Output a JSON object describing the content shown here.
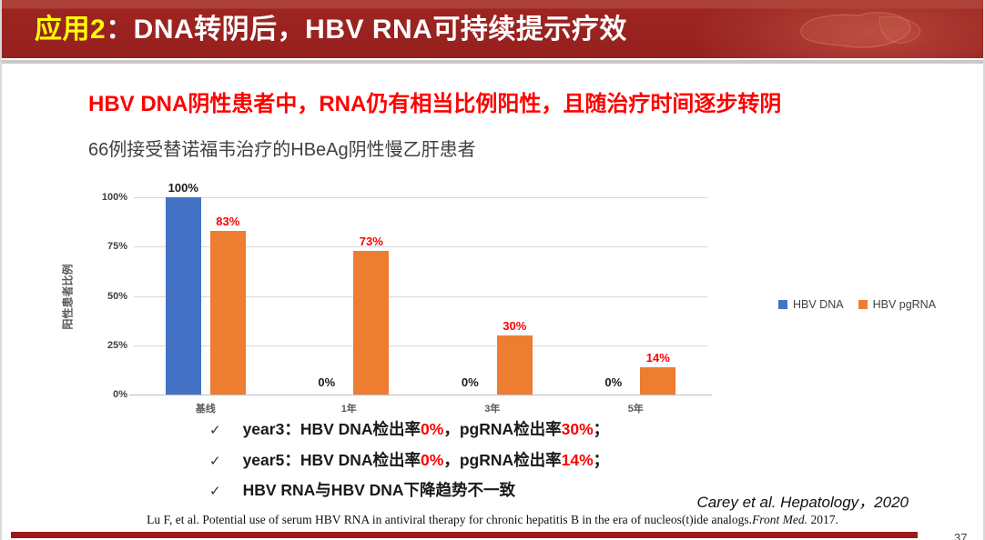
{
  "header": {
    "title_highlight": "应用2",
    "title_rest": "：DNA转阴后，HBV RNA可持续提示疗效"
  },
  "headline": "HBV DNA阴性患者中，RNA仍有相当比例阳性，且随治疗时间逐步转阴",
  "subtitle": "66例接受替诺福韦治疗的HBeAg阴性慢乙肝患者",
  "chart_data": {
    "type": "bar",
    "title": "",
    "categories": [
      "基线",
      "1年",
      "3年",
      "5年"
    ],
    "series": [
      {
        "name": "HBV DNA",
        "color": "#4472C4",
        "label_color": "#1a1a1a",
        "values": [
          100,
          0,
          0,
          0
        ]
      },
      {
        "name": "HBV pgRNA",
        "color": "#ED7D31",
        "label_color": "#FF0000",
        "values": [
          83,
          73,
          30,
          14
        ]
      }
    ],
    "xlabel": "",
    "ylabel": "阳性患者比例",
    "ylim": [
      0,
      100
    ],
    "yticks": [
      0,
      25,
      50,
      75,
      100
    ],
    "ytick_labels": [
      "0%",
      "25%",
      "50%",
      "75%",
      "100%"
    ],
    "value_labels": {
      "HBV DNA": [
        "100%",
        "0%",
        "0%",
        "0%"
      ],
      "HBV pgRNA": [
        "83%",
        "73%",
        "30%",
        "14%"
      ]
    },
    "grid": true,
    "legend_position": "right"
  },
  "bullets": [
    {
      "check": "✓",
      "parts": [
        {
          "t": "year3：HBV DNA检出率",
          "c": "black"
        },
        {
          "t": "0%",
          "c": "red"
        },
        {
          "t": "，pgRNA检出率",
          "c": "black"
        },
        {
          "t": "30%",
          "c": "red"
        },
        {
          "t": "；",
          "c": "black"
        }
      ]
    },
    {
      "check": "✓",
      "parts": [
        {
          "t": "year5：HBV DNA检出率",
          "c": "black"
        },
        {
          "t": "0%",
          "c": "red"
        },
        {
          "t": "，pgRNA检出率",
          "c": "black"
        },
        {
          "t": "14%",
          "c": "red"
        },
        {
          "t": "；",
          "c": "black"
        }
      ]
    },
    {
      "check": "✓",
      "parts": [
        {
          "t": "HBV RNA与HBV DNA下降趋势不一致",
          "c": "black"
        }
      ]
    }
  ],
  "citations": {
    "primary": "Carey et al.  Hepatology，2020",
    "secondary_prefix": "Lu F, et al. Potential use of serum HBV RNA in antiviral therapy for chronic hepatitis B in the era of nucleos(t)ide analogs.",
    "secondary_journal": "Front Med.",
    "secondary_suffix": " 2017."
  },
  "page_number": "37",
  "colors": {
    "header_bg": "#9c2522",
    "header_highlight": "#ffff00",
    "headline_red": "#ff0000",
    "bar_blue": "#4472C4",
    "bar_orange": "#ED7D31",
    "bottom_bar": "#9b1b1b",
    "gridline": "#d9d9d9"
  }
}
